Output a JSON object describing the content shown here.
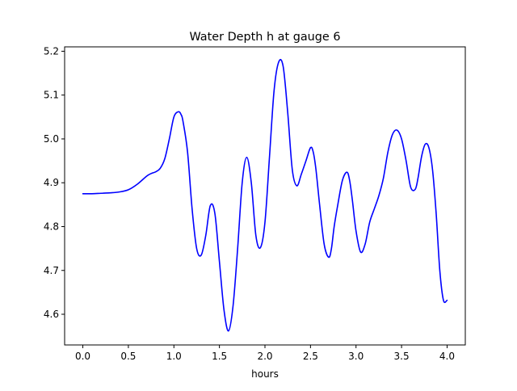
{
  "chart_data": {
    "type": "line",
    "title": "Water Depth h at gauge 6",
    "xlabel": "hours",
    "ylabel": "",
    "xlim": [
      -0.2,
      4.2
    ],
    "ylim": [
      4.53,
      5.21
    ],
    "grid": false,
    "legend": "none",
    "x_ticks": [
      0.0,
      0.5,
      1.0,
      1.5,
      2.0,
      2.5,
      3.0,
      3.5,
      4.0
    ],
    "x_tick_labels": [
      "0.0",
      "0.5",
      "1.0",
      "1.5",
      "2.0",
      "2.5",
      "3.0",
      "3.5",
      "4.0"
    ],
    "y_ticks": [
      4.6,
      4.7,
      4.8,
      4.9,
      5.0,
      5.1,
      5.2
    ],
    "y_tick_labels": [
      "4.6",
      "4.7",
      "4.8",
      "4.9",
      "5.0",
      "5.1",
      "5.2"
    ],
    "series": [
      {
        "color": "#0000ff",
        "x": [
          0.0,
          0.1,
          0.2,
          0.3,
          0.4,
          0.5,
          0.6,
          0.7,
          0.75,
          0.8,
          0.85,
          0.9,
          0.95,
          1.0,
          1.05,
          1.08,
          1.1,
          1.15,
          1.2,
          1.25,
          1.3,
          1.35,
          1.4,
          1.45,
          1.5,
          1.55,
          1.6,
          1.65,
          1.7,
          1.75,
          1.8,
          1.85,
          1.9,
          1.95,
          2.0,
          2.05,
          2.1,
          2.15,
          2.2,
          2.25,
          2.3,
          2.35,
          2.4,
          2.45,
          2.5,
          2.53,
          2.56,
          2.6,
          2.65,
          2.7,
          2.73,
          2.76,
          2.8,
          2.85,
          2.9,
          2.93,
          2.96,
          3.0,
          3.05,
          3.1,
          3.15,
          3.2,
          3.25,
          3.3,
          3.35,
          3.4,
          3.45,
          3.5,
          3.55,
          3.6,
          3.65,
          3.68,
          3.72,
          3.76,
          3.8,
          3.84,
          3.88,
          3.92,
          3.96,
          4.0
        ],
        "y": [
          4.875,
          4.875,
          4.876,
          4.877,
          4.879,
          4.884,
          4.897,
          4.915,
          4.921,
          4.925,
          4.933,
          4.955,
          5.0,
          5.05,
          5.062,
          5.055,
          5.04,
          4.97,
          4.84,
          4.75,
          4.735,
          4.78,
          4.848,
          4.83,
          4.72,
          4.61,
          4.562,
          4.62,
          4.75,
          4.9,
          4.958,
          4.9,
          4.78,
          4.752,
          4.81,
          4.96,
          5.11,
          5.175,
          5.165,
          5.06,
          4.93,
          4.893,
          4.92,
          4.95,
          4.98,
          4.97,
          4.93,
          4.85,
          4.76,
          4.73,
          4.75,
          4.8,
          4.85,
          4.905,
          4.924,
          4.905,
          4.86,
          4.79,
          4.742,
          4.76,
          4.81,
          4.84,
          4.87,
          4.91,
          4.97,
          5.01,
          5.02,
          5.0,
          4.95,
          4.89,
          4.885,
          4.91,
          4.96,
          4.988,
          4.98,
          4.93,
          4.83,
          4.7,
          4.632,
          4.632
        ]
      }
    ]
  }
}
